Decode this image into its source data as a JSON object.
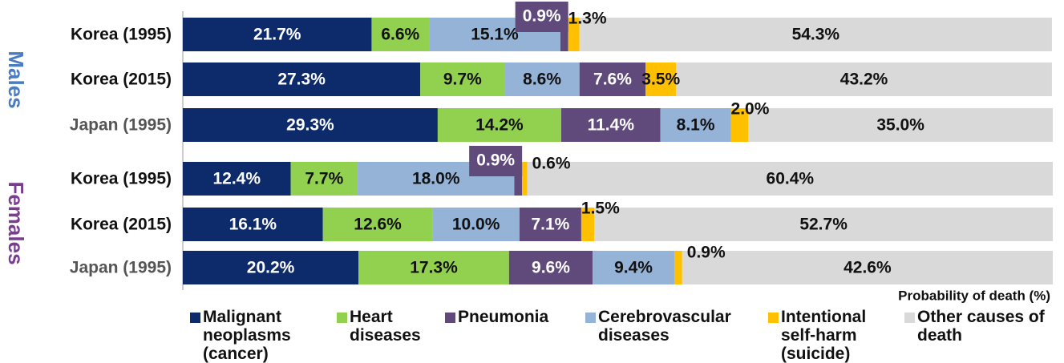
{
  "chart_data": {
    "type": "stacked-bar-horizontal",
    "categories": [
      "Korea (1995)",
      "Korea (2015)",
      "Japan (1995)",
      "Korea (1995)",
      "Korea (2015)",
      "Japan (1995)"
    ],
    "category_colors": [
      "#111111",
      "#111111",
      "#555555",
      "#111111",
      "#111111",
      "#555555"
    ],
    "groups": [
      {
        "label": "Males",
        "color": "#4a7cc0"
      },
      {
        "label": "Females",
        "color": "#7a3c90"
      }
    ],
    "series": [
      {
        "name": "Malignant neoplasms (cancer)",
        "color": "#0d2a6b",
        "label_color": "#ffffff",
        "values": [
          21.7,
          27.3,
          29.3,
          12.4,
          16.1,
          20.2
        ],
        "value_labels": [
          "21.7%",
          "27.3%",
          "29.3%",
          "12.4%",
          "16.1%",
          "20.2%"
        ]
      },
      {
        "name": "Heart diseases",
        "color": "#92d050",
        "label_color": "#111111",
        "values": [
          6.6,
          9.7,
          14.2,
          7.7,
          12.6,
          17.3
        ],
        "value_labels": [
          "6.6%",
          "9.7%",
          "14.2%",
          "7.7%",
          "12.6%",
          "17.3%"
        ]
      },
      {
        "name": "Pneumonia",
        "color": "#604a7b",
        "label_color": "#ffffff",
        "values": [
          0.9,
          7.6,
          11.4,
          0.9,
          7.1,
          9.6
        ],
        "value_labels": [
          "0.9%",
          "7.6%",
          "11.4%",
          "0.9%",
          "7.1%",
          "9.6%"
        ]
      },
      {
        "name": "Cerebrovascular diseases",
        "color": "#95b3d7",
        "label_color": "#111111",
        "values": [
          15.1,
          8.6,
          8.1,
          18.0,
          10.0,
          9.4
        ],
        "value_labels": [
          "15.1%",
          "8.6%",
          "8.1%",
          "18.0%",
          "10.0%",
          "9.4%"
        ]
      },
      {
        "name": "Intentional self-harm (suicide)",
        "color": "#ffc000",
        "label_color": "#111111",
        "values": [
          1.3,
          3.5,
          2.0,
          0.6,
          1.5,
          0.9
        ],
        "value_labels": [
          "1.3%",
          "3.5%",
          "2.0%",
          "0.6%",
          "1.5%",
          "0.9%"
        ]
      },
      {
        "name": "Other causes of death",
        "color": "#d9d9d9",
        "label_color": "#111111",
        "values": [
          54.3,
          43.2,
          35.0,
          60.4,
          52.7,
          42.6
        ],
        "value_labels": [
          "54.3%",
          "43.2%",
          "35.0%",
          "60.4%",
          "52.7%",
          "42.6%"
        ]
      }
    ],
    "x_label": "Probability of death (%)",
    "xlim": [
      0,
      100
    ]
  }
}
